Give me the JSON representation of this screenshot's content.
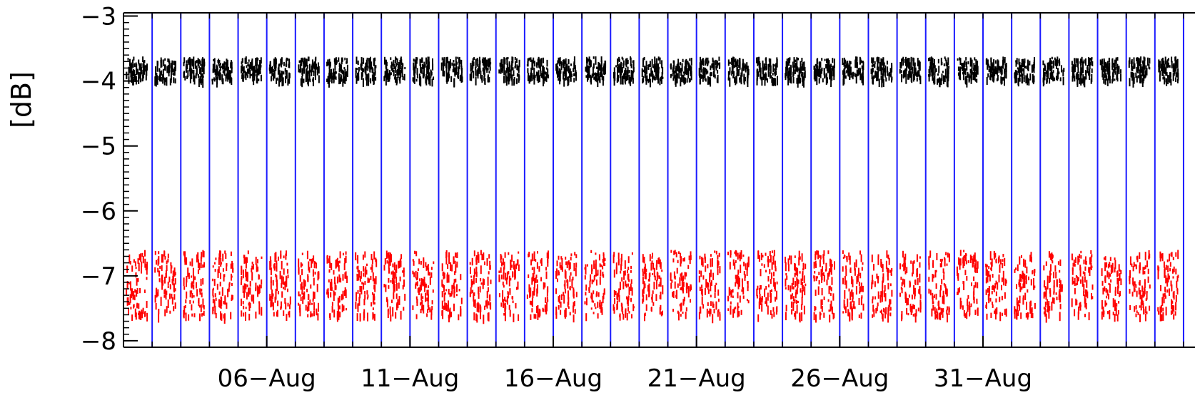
{
  "chart_data": {
    "type": "scatter",
    "title": "",
    "xlabel": "",
    "ylabel": "[dB]",
    "ylim": [
      -8.1,
      -2.95
    ],
    "y_ticks": [
      "−3",
      "−4",
      "−5",
      "−6",
      "−7",
      "−8"
    ],
    "y_tick_values": [
      -3,
      -4,
      -5,
      -6,
      -7,
      -8
    ],
    "x_tick_labels": [
      "06−Aug",
      "11−Aug",
      "16−Aug",
      "21−Aug",
      "26−Aug",
      "31−Aug"
    ],
    "x_tick_days": [
      6,
      11,
      16,
      21,
      26,
      31
    ],
    "xlim_days": [
      1,
      38.4
    ],
    "grid": false,
    "legend": "none",
    "series": [
      {
        "color": "#000000",
        "center": -3.8,
        "spread": [
          -3.97,
          -3.62
        ]
      },
      {
        "color": "#ff0000",
        "center": -7.0,
        "spread": [
          -7.6,
          -6.6
        ]
      }
    ],
    "day_markers_color": "#1a1aff",
    "day_markers": [
      2,
      3,
      4,
      5,
      6,
      7,
      8,
      9,
      10,
      11,
      12,
      13,
      14,
      15,
      16,
      17,
      18,
      19,
      20,
      21,
      22,
      23,
      24,
      25,
      26,
      27,
      28,
      29,
      30,
      31,
      32,
      33,
      34,
      35,
      36,
      37,
      38
    ]
  }
}
